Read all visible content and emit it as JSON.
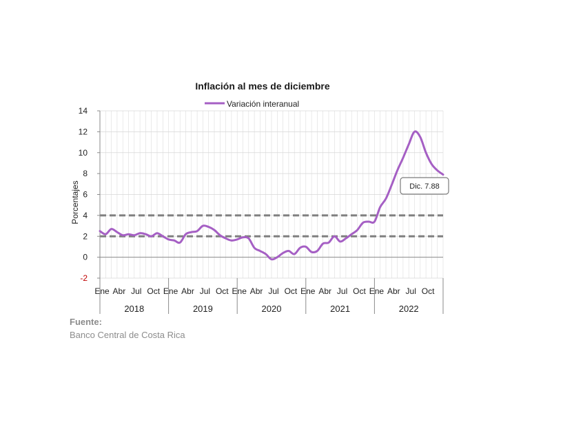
{
  "chart_data": {
    "type": "line",
    "title": "Inflación al mes de diciembre",
    "ylabel": "Porcentajes",
    "ylim": [
      -2,
      14
    ],
    "yticks": [
      "14",
      "12",
      "10",
      "8",
      "6",
      "4",
      "2",
      "0",
      "-2"
    ],
    "grid": true,
    "legend_position": "top",
    "series": [
      {
        "name": "Variación interanual",
        "color": "#a55fc4",
        "values": [
          2.5,
          2.2,
          2.7,
          2.4,
          2.1,
          2.2,
          2.1,
          2.3,
          2.2,
          2.0,
          2.3,
          2.0,
          1.7,
          1.6,
          1.4,
          2.2,
          2.4,
          2.5,
          3.0,
          2.9,
          2.6,
          2.1,
          1.8,
          1.6,
          1.7,
          1.9,
          1.8,
          0.9,
          0.6,
          0.3,
          -0.2,
          0.0,
          0.4,
          0.6,
          0.3,
          0.9,
          1.0,
          0.5,
          0.6,
          1.3,
          1.4,
          2.0,
          1.5,
          1.8,
          2.2,
          2.6,
          3.3,
          3.4,
          3.4,
          4.8,
          5.6,
          6.9,
          8.3,
          9.5,
          10.8,
          12.0,
          11.5,
          10.0,
          8.9,
          8.3,
          7.9
        ]
      }
    ],
    "reference_lines": [
      4,
      2
    ],
    "month_labels": [
      "Ene",
      "Abr",
      "Jul",
      "Oct"
    ],
    "years": [
      "2018",
      "2019",
      "2020",
      "2021",
      "2022"
    ],
    "annotation": "Dic. 7.88"
  },
  "source": {
    "label": "Fuente:",
    "text": "Banco Central de Costa Rica"
  }
}
